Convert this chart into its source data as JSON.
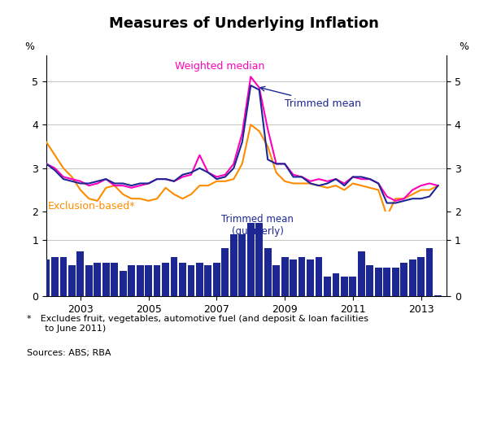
{
  "title": "Measures of Underlying Inflation",
  "ylabel_left": "%",
  "ylabel_right": "%",
  "ylim_main": [
    2.0,
    5.6
  ],
  "ylim_bar": [
    0,
    1.5
  ],
  "yticks_main": [
    2,
    3,
    4,
    5
  ],
  "yticks_bar": [
    0,
    1
  ],
  "footnote_star": "* Excludes fruit, vegetables, automotive fuel (and deposit & loan facilities\n  to June 2011)",
  "footnote_sources": "Sources: ABS; RBA",
  "color_weighted_median": "#FF00BB",
  "color_trimmed_mean": "#1C2794",
  "color_exclusion": "#FF8C00",
  "color_bars": "#1C2794",
  "weighted_median_x": [
    2002.0,
    2002.25,
    2002.5,
    2002.75,
    2003.0,
    2003.25,
    2003.5,
    2003.75,
    2004.0,
    2004.25,
    2004.5,
    2004.75,
    2005.0,
    2005.25,
    2005.5,
    2005.75,
    2006.0,
    2006.25,
    2006.5,
    2006.75,
    2007.0,
    2007.25,
    2007.5,
    2007.75,
    2008.0,
    2008.25,
    2008.5,
    2008.75,
    2009.0,
    2009.25,
    2009.5,
    2009.75,
    2010.0,
    2010.25,
    2010.5,
    2010.75,
    2011.0,
    2011.25,
    2011.5,
    2011.75,
    2012.0,
    2012.25,
    2012.5,
    2012.75,
    2013.0,
    2013.25,
    2013.5
  ],
  "weighted_median_y": [
    3.1,
    3.0,
    2.8,
    2.75,
    2.7,
    2.6,
    2.65,
    2.75,
    2.6,
    2.6,
    2.55,
    2.6,
    2.65,
    2.75,
    2.75,
    2.7,
    2.8,
    2.85,
    3.3,
    2.9,
    2.8,
    2.85,
    3.1,
    3.8,
    5.1,
    4.85,
    3.9,
    3.1,
    3.1,
    2.85,
    2.8,
    2.7,
    2.75,
    2.7,
    2.75,
    2.65,
    2.8,
    2.75,
    2.75,
    2.65,
    2.35,
    2.25,
    2.3,
    2.5,
    2.6,
    2.65,
    2.6
  ],
  "trimmed_mean_x": [
    2002.0,
    2002.25,
    2002.5,
    2002.75,
    2003.0,
    2003.25,
    2003.5,
    2003.75,
    2004.0,
    2004.25,
    2004.5,
    2004.75,
    2005.0,
    2005.25,
    2005.5,
    2005.75,
    2006.0,
    2006.25,
    2006.5,
    2006.75,
    2007.0,
    2007.25,
    2007.5,
    2007.75,
    2008.0,
    2008.25,
    2008.5,
    2008.75,
    2009.0,
    2009.25,
    2009.5,
    2009.75,
    2010.0,
    2010.25,
    2010.5,
    2010.75,
    2011.0,
    2011.25,
    2011.5,
    2011.75,
    2012.0,
    2012.25,
    2012.5,
    2012.75,
    2013.0,
    2013.25,
    2013.5
  ],
  "trimmed_mean_y": [
    3.1,
    2.95,
    2.75,
    2.7,
    2.65,
    2.65,
    2.7,
    2.75,
    2.65,
    2.65,
    2.6,
    2.65,
    2.65,
    2.75,
    2.75,
    2.7,
    2.85,
    2.9,
    3.0,
    2.9,
    2.75,
    2.8,
    3.0,
    3.6,
    4.9,
    4.8,
    3.2,
    3.1,
    3.1,
    2.8,
    2.8,
    2.65,
    2.6,
    2.65,
    2.75,
    2.6,
    2.8,
    2.8,
    2.75,
    2.65,
    2.2,
    2.2,
    2.25,
    2.3,
    2.3,
    2.35,
    2.6
  ],
  "exclusion_x": [
    2002.0,
    2002.25,
    2002.5,
    2002.75,
    2003.0,
    2003.25,
    2003.5,
    2003.75,
    2004.0,
    2004.25,
    2004.5,
    2004.75,
    2005.0,
    2005.25,
    2005.5,
    2005.75,
    2006.0,
    2006.25,
    2006.5,
    2006.75,
    2007.0,
    2007.25,
    2007.5,
    2007.75,
    2008.0,
    2008.25,
    2008.5,
    2008.75,
    2009.0,
    2009.25,
    2009.5,
    2009.75,
    2010.0,
    2010.25,
    2010.5,
    2010.75,
    2011.0,
    2011.25,
    2011.5,
    2011.75,
    2012.0,
    2012.25,
    2012.5,
    2012.75,
    2013.0,
    2013.25,
    2013.5
  ],
  "exclusion_y": [
    3.6,
    3.3,
    3.0,
    2.8,
    2.5,
    2.3,
    2.25,
    2.55,
    2.6,
    2.4,
    2.3,
    2.3,
    2.25,
    2.3,
    2.55,
    2.4,
    2.3,
    2.4,
    2.6,
    2.6,
    2.7,
    2.7,
    2.75,
    3.1,
    4.0,
    3.85,
    3.5,
    2.9,
    2.7,
    2.65,
    2.65,
    2.65,
    2.6,
    2.55,
    2.6,
    2.5,
    2.65,
    2.6,
    2.55,
    2.5,
    1.9,
    2.3,
    2.3,
    2.4,
    2.5,
    2.5,
    2.6
  ],
  "bar_x": [
    2002.0,
    2002.25,
    2002.5,
    2002.75,
    2003.0,
    2003.25,
    2003.5,
    2003.75,
    2004.0,
    2004.25,
    2004.5,
    2004.75,
    2005.0,
    2005.25,
    2005.5,
    2005.75,
    2006.0,
    2006.25,
    2006.5,
    2006.75,
    2007.0,
    2007.25,
    2007.5,
    2007.75,
    2008.0,
    2008.25,
    2008.5,
    2008.75,
    2009.0,
    2009.25,
    2009.5,
    2009.75,
    2010.0,
    2010.25,
    2010.5,
    2010.75,
    2011.0,
    2011.25,
    2011.5,
    2011.75,
    2012.0,
    2012.25,
    2012.5,
    2012.75,
    2013.0,
    2013.25,
    2013.5
  ],
  "bar_y": [
    0.65,
    0.7,
    0.7,
    0.55,
    0.8,
    0.55,
    0.6,
    0.6,
    0.6,
    0.45,
    0.55,
    0.55,
    0.55,
    0.55,
    0.6,
    0.7,
    0.6,
    0.55,
    0.6,
    0.55,
    0.6,
    0.85,
    1.1,
    1.1,
    1.3,
    1.3,
    0.85,
    0.55,
    0.7,
    0.65,
    0.7,
    0.65,
    0.7,
    0.35,
    0.4,
    0.35,
    0.35,
    0.8,
    0.55,
    0.5,
    0.5,
    0.5,
    0.6,
    0.65,
    0.7,
    0.85,
    0.02
  ],
  "xmin": 2002.0,
  "xmax": 2013.75,
  "xticks": [
    2003,
    2005,
    2007,
    2009,
    2011,
    2013
  ],
  "grid_color": "#BBBBBB",
  "background_color": "#FFFFFF",
  "spine_color": "#000000"
}
